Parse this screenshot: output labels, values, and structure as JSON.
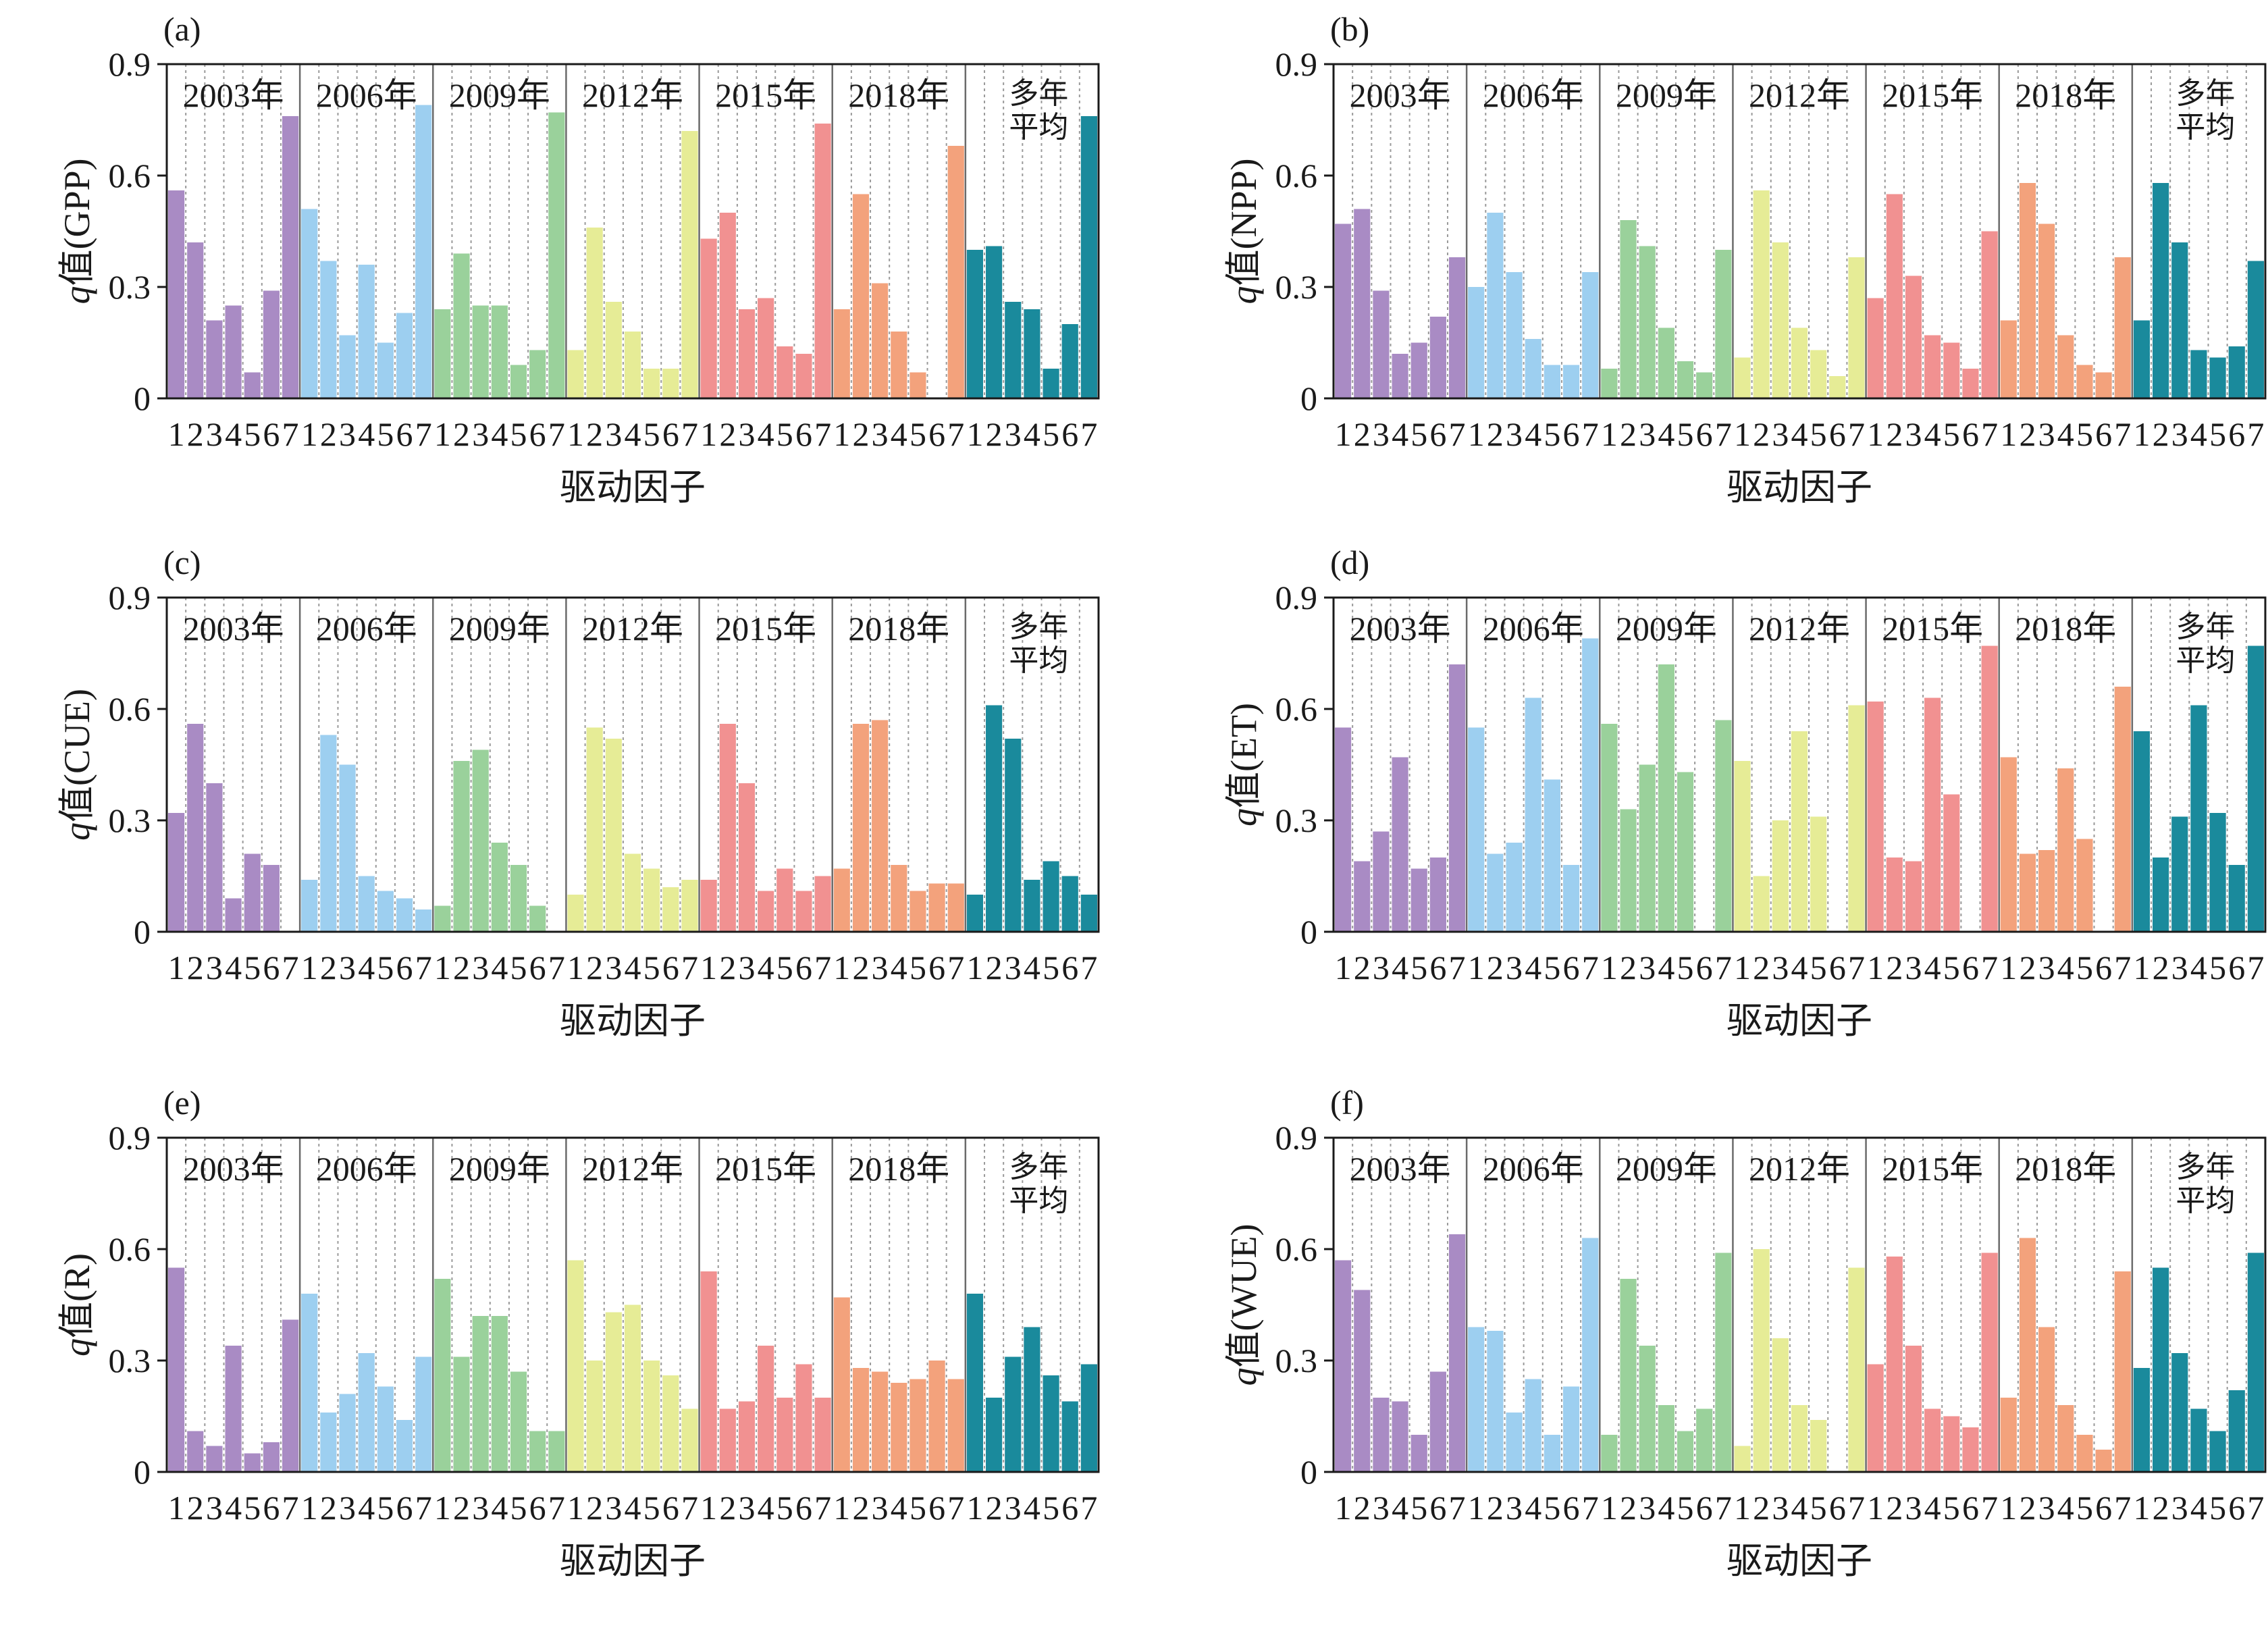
{
  "colors": {
    "2003年": "#a98bc4",
    "2006年": "#9dcff0",
    "2009年": "#9ad19b",
    "2012年": "#e6ec96",
    "2015年": "#f19191",
    "2018年": "#f3a27c",
    "多年平均": "#1a8a9c"
  },
  "chart_data": [
    {
      "type": "bar",
      "panel": "(a)",
      "ylabel_var": "q",
      "ylabel_rest": "值(GPP)",
      "xlabel": "驱动因子",
      "ylim": [
        0,
        0.9
      ],
      "yticks": [
        "0",
        "0.3",
        "0.6",
        "0.9"
      ],
      "groups": [
        "2003年",
        "2006年",
        "2009年",
        "2012年",
        "2015年",
        "2018年",
        "多年平均"
      ],
      "factor_labels": [
        "1",
        "2",
        "3",
        "4",
        "5",
        "6",
        "7"
      ],
      "values": [
        [
          0.56,
          0.42,
          0.21,
          0.25,
          0.07,
          0.29,
          0.76
        ],
        [
          0.51,
          0.37,
          0.17,
          0.36,
          0.15,
          0.23,
          0.79
        ],
        [
          0.24,
          0.39,
          0.25,
          0.25,
          0.09,
          0.13,
          0.77
        ],
        [
          0.13,
          0.46,
          0.26,
          0.18,
          0.08,
          0.08,
          0.72
        ],
        [
          0.43,
          0.5,
          0.24,
          0.27,
          0.14,
          0.12,
          0.74
        ],
        [
          0.24,
          0.55,
          0.31,
          0.18,
          0.07,
          0.0,
          0.68
        ],
        [
          0.4,
          0.41,
          0.26,
          0.24,
          0.08,
          0.2,
          0.76
        ]
      ]
    },
    {
      "type": "bar",
      "panel": "(b)",
      "ylabel_var": "q",
      "ylabel_rest": "值(NPP)",
      "xlabel": "驱动因子",
      "ylim": [
        0,
        0.9
      ],
      "yticks": [
        "0",
        "0.3",
        "0.6",
        "0.9"
      ],
      "groups": [
        "2003年",
        "2006年",
        "2009年",
        "2012年",
        "2015年",
        "2018年",
        "多年平均"
      ],
      "factor_labels": [
        "1",
        "2",
        "3",
        "4",
        "5",
        "6",
        "7"
      ],
      "values": [
        [
          0.47,
          0.51,
          0.29,
          0.12,
          0.15,
          0.22,
          0.38
        ],
        [
          0.3,
          0.5,
          0.34,
          0.16,
          0.09,
          0.09,
          0.34
        ],
        [
          0.08,
          0.48,
          0.41,
          0.19,
          0.1,
          0.07,
          0.4
        ],
        [
          0.11,
          0.56,
          0.42,
          0.19,
          0.13,
          0.06,
          0.38
        ],
        [
          0.27,
          0.55,
          0.33,
          0.17,
          0.15,
          0.08,
          0.45
        ],
        [
          0.21,
          0.58,
          0.47,
          0.17,
          0.09,
          0.07,
          0.38
        ],
        [
          0.21,
          0.58,
          0.42,
          0.13,
          0.11,
          0.14,
          0.37
        ]
      ]
    },
    {
      "type": "bar",
      "panel": "(c)",
      "ylabel_var": "q",
      "ylabel_rest": "值(CUE)",
      "xlabel": "驱动因子",
      "ylim": [
        0,
        0.9
      ],
      "yticks": [
        "0",
        "0.3",
        "0.6",
        "0.9"
      ],
      "groups": [
        "2003年",
        "2006年",
        "2009年",
        "2012年",
        "2015年",
        "2018年",
        "多年平均"
      ],
      "factor_labels": [
        "1",
        "2",
        "3",
        "4",
        "5",
        "6",
        "7"
      ],
      "values": [
        [
          0.32,
          0.56,
          0.4,
          0.09,
          0.21,
          0.18,
          0.0
        ],
        [
          0.14,
          0.53,
          0.45,
          0.15,
          0.11,
          0.09,
          0.06
        ],
        [
          0.07,
          0.46,
          0.49,
          0.24,
          0.18,
          0.07,
          0.0
        ],
        [
          0.1,
          0.55,
          0.52,
          0.21,
          0.17,
          0.12,
          0.14
        ],
        [
          0.14,
          0.56,
          0.4,
          0.11,
          0.17,
          0.11,
          0.15
        ],
        [
          0.17,
          0.56,
          0.57,
          0.18,
          0.11,
          0.13,
          0.13
        ],
        [
          0.1,
          0.61,
          0.52,
          0.14,
          0.19,
          0.15,
          0.1
        ]
      ]
    },
    {
      "type": "bar",
      "panel": "(d)",
      "ylabel_var": "q",
      "ylabel_rest": "值(ET)",
      "xlabel": "驱动因子",
      "ylim": [
        0,
        0.9
      ],
      "yticks": [
        "0",
        "0.3",
        "0.6",
        "0.9"
      ],
      "groups": [
        "2003年",
        "2006年",
        "2009年",
        "2012年",
        "2015年",
        "2018年",
        "多年平均"
      ],
      "factor_labels": [
        "1",
        "2",
        "3",
        "4",
        "5",
        "6",
        "7"
      ],
      "values": [
        [
          0.55,
          0.19,
          0.27,
          0.47,
          0.17,
          0.2,
          0.72
        ],
        [
          0.55,
          0.21,
          0.24,
          0.63,
          0.41,
          0.18,
          0.79
        ],
        [
          0.56,
          0.33,
          0.45,
          0.72,
          0.43,
          0.0,
          0.57
        ],
        [
          0.46,
          0.15,
          0.3,
          0.54,
          0.31,
          0.0,
          0.61
        ],
        [
          0.62,
          0.2,
          0.19,
          0.63,
          0.37,
          0.0,
          0.77
        ],
        [
          0.47,
          0.21,
          0.22,
          0.44,
          0.25,
          0.0,
          0.66
        ],
        [
          0.54,
          0.2,
          0.31,
          0.61,
          0.32,
          0.18,
          0.77
        ]
      ]
    },
    {
      "type": "bar",
      "panel": "(e)",
      "ylabel_var": "q",
      "ylabel_rest": "值(R)",
      "xlabel": "驱动因子",
      "ylim": [
        0,
        0.9
      ],
      "yticks": [
        "0",
        "0.3",
        "0.6",
        "0.9"
      ],
      "groups": [
        "2003年",
        "2006年",
        "2009年",
        "2012年",
        "2015年",
        "2018年",
        "多年平均"
      ],
      "factor_labels": [
        "1",
        "2",
        "3",
        "4",
        "5",
        "6",
        "7"
      ],
      "values": [
        [
          0.55,
          0.11,
          0.07,
          0.34,
          0.05,
          0.08,
          0.41
        ],
        [
          0.48,
          0.16,
          0.21,
          0.32,
          0.23,
          0.14,
          0.31
        ],
        [
          0.52,
          0.31,
          0.42,
          0.42,
          0.27,
          0.11,
          0.11
        ],
        [
          0.57,
          0.3,
          0.43,
          0.45,
          0.3,
          0.26,
          0.17
        ],
        [
          0.54,
          0.17,
          0.19,
          0.34,
          0.2,
          0.29,
          0.2
        ],
        [
          0.47,
          0.28,
          0.27,
          0.24,
          0.25,
          0.3,
          0.25
        ],
        [
          0.48,
          0.2,
          0.31,
          0.39,
          0.26,
          0.19,
          0.29
        ]
      ]
    },
    {
      "type": "bar",
      "panel": "(f)",
      "ylabel_var": "q",
      "ylabel_rest": "值(WUE)",
      "xlabel": "驱动因子",
      "ylim": [
        0,
        0.9
      ],
      "yticks": [
        "0",
        "0.3",
        "0.6",
        "0.9"
      ],
      "groups": [
        "2003年",
        "2006年",
        "2009年",
        "2012年",
        "2015年",
        "2018年",
        "多年平均"
      ],
      "factor_labels": [
        "1",
        "2",
        "3",
        "4",
        "5",
        "6",
        "7"
      ],
      "values": [
        [
          0.57,
          0.49,
          0.2,
          0.19,
          0.1,
          0.27,
          0.64
        ],
        [
          0.39,
          0.38,
          0.16,
          0.25,
          0.1,
          0.23,
          0.63
        ],
        [
          0.1,
          0.52,
          0.34,
          0.18,
          0.11,
          0.17,
          0.59
        ],
        [
          0.07,
          0.6,
          0.36,
          0.18,
          0.14,
          0.0,
          0.55
        ],
        [
          0.29,
          0.58,
          0.34,
          0.17,
          0.15,
          0.12,
          0.59
        ],
        [
          0.2,
          0.63,
          0.39,
          0.18,
          0.1,
          0.06,
          0.54
        ],
        [
          0.28,
          0.55,
          0.32,
          0.17,
          0.11,
          0.22,
          0.59
        ]
      ]
    }
  ]
}
